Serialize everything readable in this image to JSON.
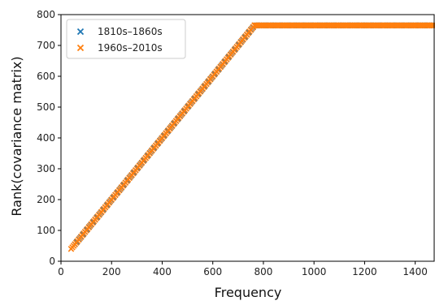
{
  "chart_data": {
    "type": "scatter",
    "title": "",
    "xlabel": "Frequency",
    "ylabel": "Rank(covariance matrix)",
    "xlim": [
      0,
      1475
    ],
    "ylim": [
      0,
      800
    ],
    "xticks": [
      0,
      200,
      400,
      600,
      800,
      1000,
      1200,
      1400
    ],
    "yticks": [
      0,
      100,
      200,
      300,
      400,
      500,
      600,
      700,
      800
    ],
    "grid": false,
    "legend_position": "top-left",
    "marker": "x",
    "series": [
      {
        "name": "1810s–1860s",
        "color": "#1f77b4",
        "segments": [
          {
            "x_from": 55,
            "x_to": 765,
            "slope": 1.0,
            "step": 8
          },
          {
            "x_from": 765,
            "x_to": 1475,
            "y": 765,
            "step": 6
          }
        ]
      },
      {
        "name": "1960s–2010s",
        "color": "#ff7f0e",
        "segments": [
          {
            "x_from": 40,
            "x_to": 765,
            "slope": 1.0,
            "step": 5
          },
          {
            "x_from": 765,
            "x_to": 1475,
            "y": 765,
            "step": 5
          }
        ]
      }
    ]
  }
}
